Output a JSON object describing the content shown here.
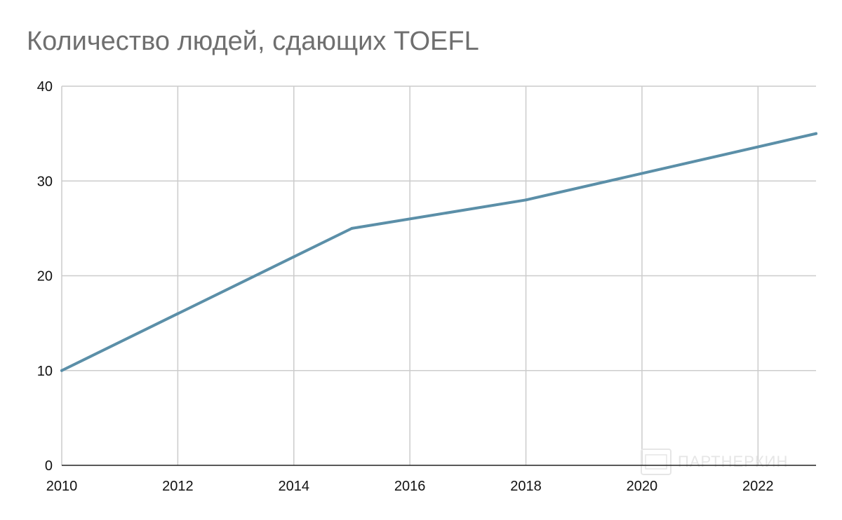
{
  "chart_data": {
    "type": "line",
    "title": "Количество людей, сдающих TOEFL",
    "xlabel": "",
    "ylabel": "",
    "x": [
      2010,
      2012,
      2014,
      2015,
      2018,
      2023
    ],
    "series": [
      {
        "values": [
          10,
          16,
          22,
          25,
          28,
          35
        ]
      }
    ],
    "xlim": [
      2010,
      2023
    ],
    "ylim": [
      0,
      40
    ],
    "xticks": [
      "2010",
      "2012",
      "2014",
      "2016",
      "2018",
      "2020",
      "2022"
    ],
    "yticks": [
      "0",
      "10",
      "20",
      "30",
      "40"
    ],
    "grid": true,
    "legend": "none"
  },
  "colors": {
    "line": "#5b8fa8",
    "grid": "#cccccc",
    "axis": "#222222",
    "title": "#6f6f6f"
  },
  "watermark": {
    "text": "ПАРТНЕРКИН"
  }
}
